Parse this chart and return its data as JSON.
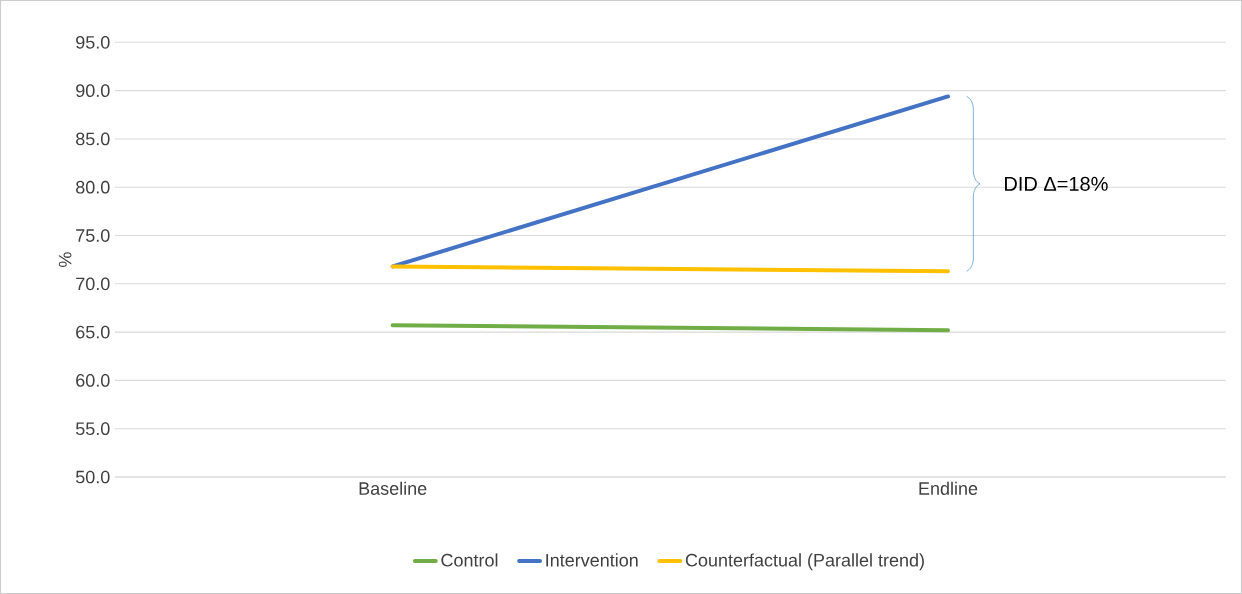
{
  "chart_data": {
    "type": "line",
    "ylabel": "%",
    "categories": [
      "Baseline",
      "Endline"
    ],
    "series": [
      {
        "name": "Control",
        "color": "#70ad47",
        "values": [
          65.7,
          65.2
        ]
      },
      {
        "name": "Intervention",
        "color": "#4472c4",
        "values": [
          71.8,
          89.4
        ]
      },
      {
        "name": "Counterfactual (Parallel trend)",
        "color": "#ffc000",
        "values": [
          71.8,
          71.3
        ]
      }
    ],
    "ylim": [
      50,
      95
    ],
    "yticks": [
      {
        "value": 50,
        "label": "50.0"
      },
      {
        "value": 55,
        "label": "55.0"
      },
      {
        "value": 60,
        "label": "60.0"
      },
      {
        "value": 65,
        "label": "65.0"
      },
      {
        "value": 70,
        "label": "70.0"
      },
      {
        "value": 75,
        "label": "75.0"
      },
      {
        "value": 80,
        "label": "80.0"
      },
      {
        "value": 85,
        "label": "85.0"
      },
      {
        "value": 90,
        "label": "90.0"
      },
      {
        "value": 95,
        "label": "95.0"
      }
    ],
    "annotations": [
      "DID Δ=18%"
    ],
    "grid": "y",
    "legend": "bottom",
    "marker": "none",
    "line_style": "solid"
  }
}
